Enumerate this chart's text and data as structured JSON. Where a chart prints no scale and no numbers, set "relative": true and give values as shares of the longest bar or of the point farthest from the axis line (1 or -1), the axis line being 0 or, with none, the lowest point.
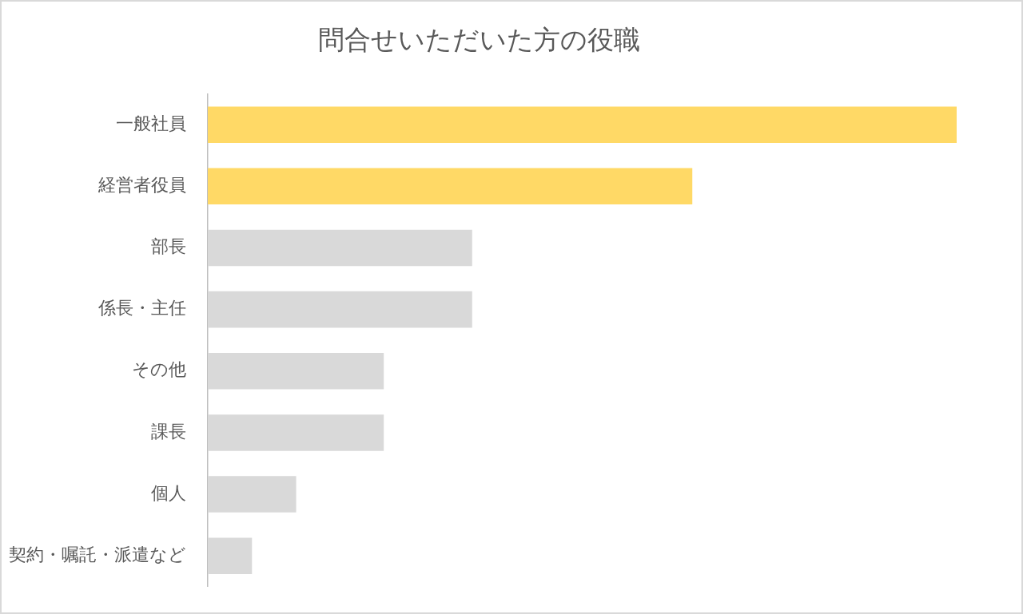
{
  "chart_data": {
    "type": "bar",
    "title": "問合せいただいた方の役職",
    "orientation": "horizontal",
    "relative": true,
    "categories": [
      "一般社員",
      "経営者役員",
      "部長",
      "係長・主任",
      "その他",
      "課長",
      "個人",
      "契約・嘱託・派遣など"
    ],
    "values": [
      1,
      0.647,
      0.353,
      0.353,
      0.235,
      0.235,
      0.118,
      0.059
    ],
    "colors": [
      "#ffd966",
      "#ffd966",
      "#d9d9d9",
      "#d9d9d9",
      "#d9d9d9",
      "#d9d9d9",
      "#d9d9d9",
      "#d9d9d9"
    ]
  }
}
